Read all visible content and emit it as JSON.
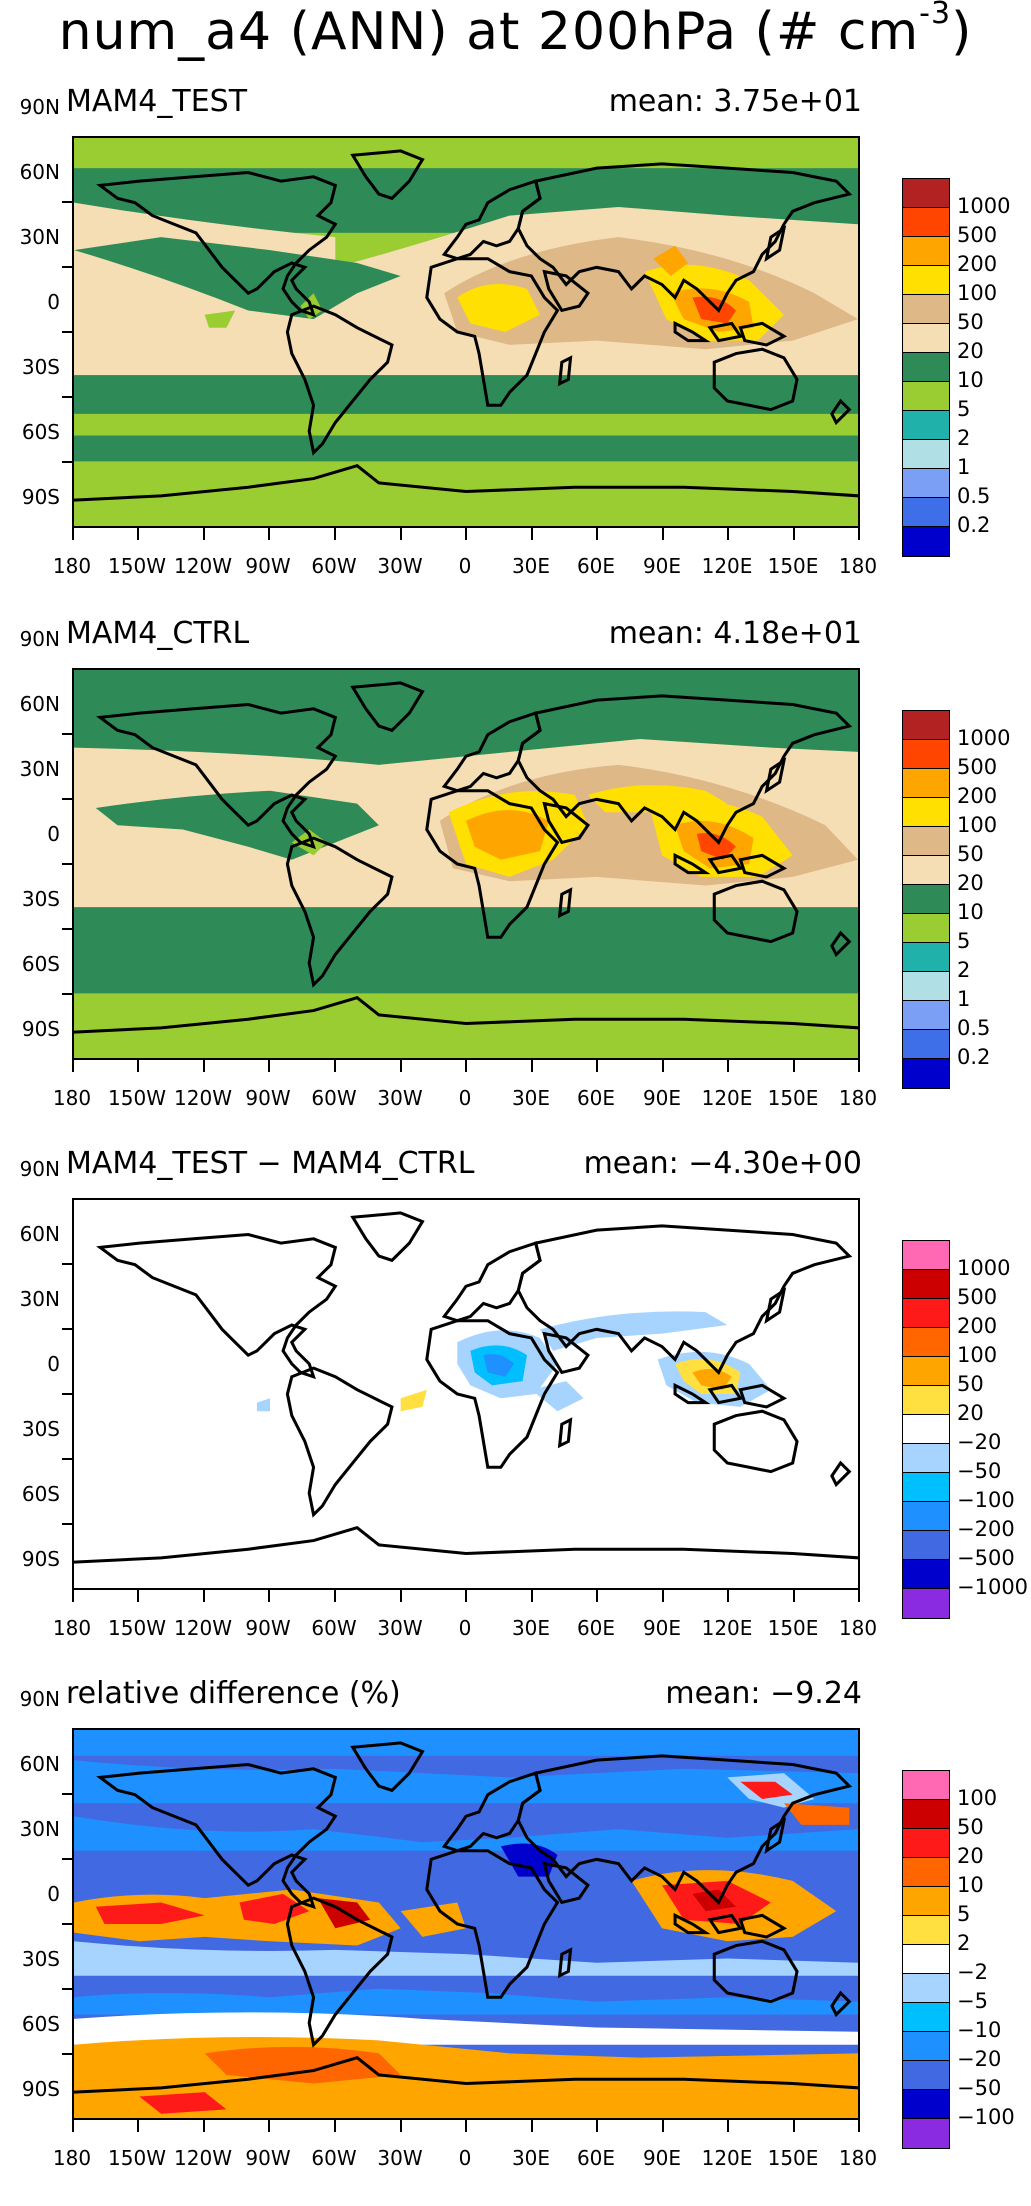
{
  "figure": {
    "title_main": "num_a4 (ANN) at 200hPa (# cm",
    "title_exp": "-3",
    "title_end": ")"
  },
  "axes": {
    "lat_labels": [
      "90N",
      "60N",
      "30N",
      "0",
      "30S",
      "60S",
      "90S"
    ],
    "lon_labels": [
      "180",
      "150W",
      "120W",
      "90W",
      "60W",
      "30W",
      "0",
      "30E",
      "60E",
      "90E",
      "120E",
      "150E",
      "180"
    ]
  },
  "panels": [
    {
      "name": "MAM4_TEST",
      "mean_text": "mean: 3.75e+01",
      "colorbar_colors": [
        "#b22222",
        "#ff4500",
        "#ffa500",
        "#ffe000",
        "#deb887",
        "#f5deb3",
        "#2e8b57",
        "#9acd32",
        "#20b2aa",
        "#b0e0e6",
        "#7b9ff5",
        "#3f6fe8",
        "#0000cd"
      ],
      "colorbar_labels": [
        "1000",
        "500",
        "200",
        "100",
        "50",
        "20",
        "10",
        "5",
        "2",
        "1",
        "0.5",
        "0.2"
      ]
    },
    {
      "name": "MAM4_CTRL",
      "mean_text": "mean: 4.18e+01",
      "colorbar_colors": [
        "#b22222",
        "#ff4500",
        "#ffa500",
        "#ffe000",
        "#deb887",
        "#f5deb3",
        "#2e8b57",
        "#9acd32",
        "#20b2aa",
        "#b0e0e6",
        "#7b9ff5",
        "#3f6fe8",
        "#0000cd"
      ],
      "colorbar_labels": [
        "1000",
        "500",
        "200",
        "100",
        "50",
        "20",
        "10",
        "5",
        "2",
        "1",
        "0.5",
        "0.2"
      ]
    },
    {
      "name": "MAM4_TEST − MAM4_CTRL",
      "mean_text": "mean: −4.30e+00",
      "colorbar_colors": [
        "#ff69b4",
        "#cc0000",
        "#ff1a1a",
        "#ff6600",
        "#ffa500",
        "#ffe040",
        "#ffffff",
        "#a6d4ff",
        "#00bfff",
        "#1e90ff",
        "#4169e1",
        "#0000cd",
        "#8a2be2"
      ],
      "colorbar_labels": [
        "1000",
        "500",
        "200",
        "100",
        "50",
        "20",
        "−20",
        "−50",
        "−100",
        "−200",
        "−500",
        "−1000"
      ]
    },
    {
      "name": "relative difference (%)",
      "mean_text": "mean: −9.24",
      "colorbar_colors": [
        "#ff69b4",
        "#cc0000",
        "#ff1a1a",
        "#ff6600",
        "#ffa500",
        "#ffe040",
        "#ffffff",
        "#a6d4ff",
        "#00bfff",
        "#1e90ff",
        "#4169e1",
        "#0000cd",
        "#8a2be2"
      ],
      "colorbar_labels": [
        "100",
        "50",
        "20",
        "10",
        "5",
        "2",
        "−2",
        "−5",
        "−10",
        "−20",
        "−50",
        "−100"
      ]
    }
  ]
}
